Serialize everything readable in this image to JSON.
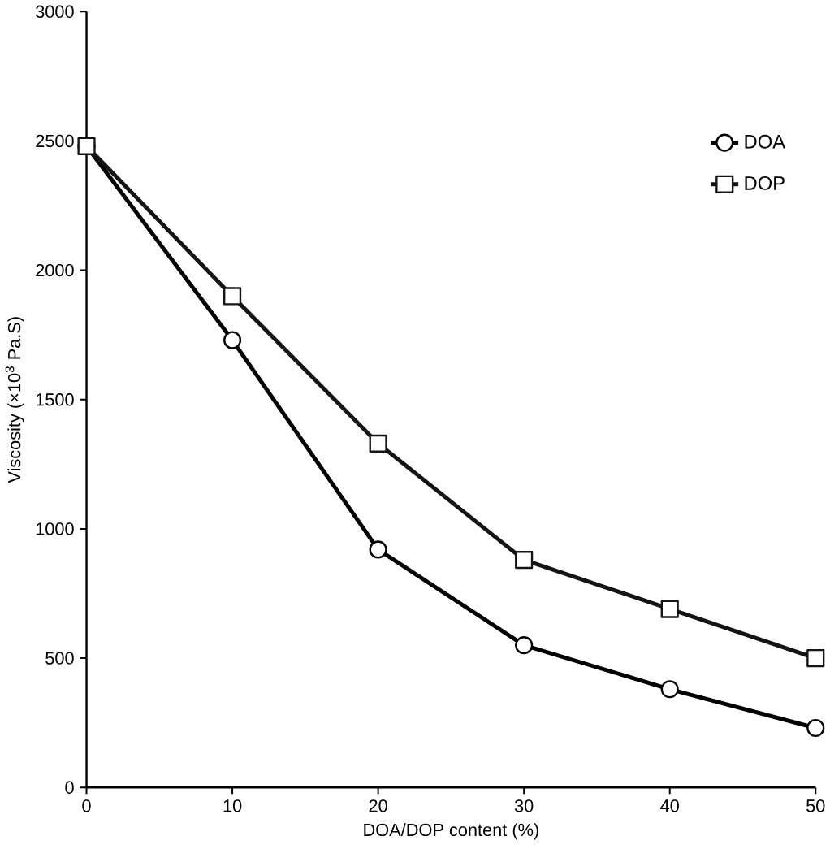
{
  "chart_data": {
    "type": "line",
    "xlabel": "DOA/DOP content  (%)",
    "ylabel": "Viscosity  (×10$^{3}$ Pa.S)",
    "x": [
      0,
      10,
      20,
      30,
      40,
      50
    ],
    "series": [
      {
        "name": "DOA",
        "color": "#000000",
        "marker": "circle",
        "values": [
          2480,
          1730,
          920,
          550,
          380,
          230
        ]
      },
      {
        "name": "DOP",
        "color": "#141414",
        "marker": "square",
        "values": [
          2480,
          1900,
          1330,
          880,
          690,
          500
        ]
      }
    ],
    "xlim": [
      0,
      50
    ],
    "ylim": [
      0,
      3000
    ],
    "xticks": [
      0,
      10,
      20,
      30,
      40,
      50
    ],
    "yticks": [
      0,
      500,
      1000,
      1500,
      2000,
      2500,
      3000
    ],
    "legend": "top right",
    "grid": false,
    "line_style": "solid"
  }
}
